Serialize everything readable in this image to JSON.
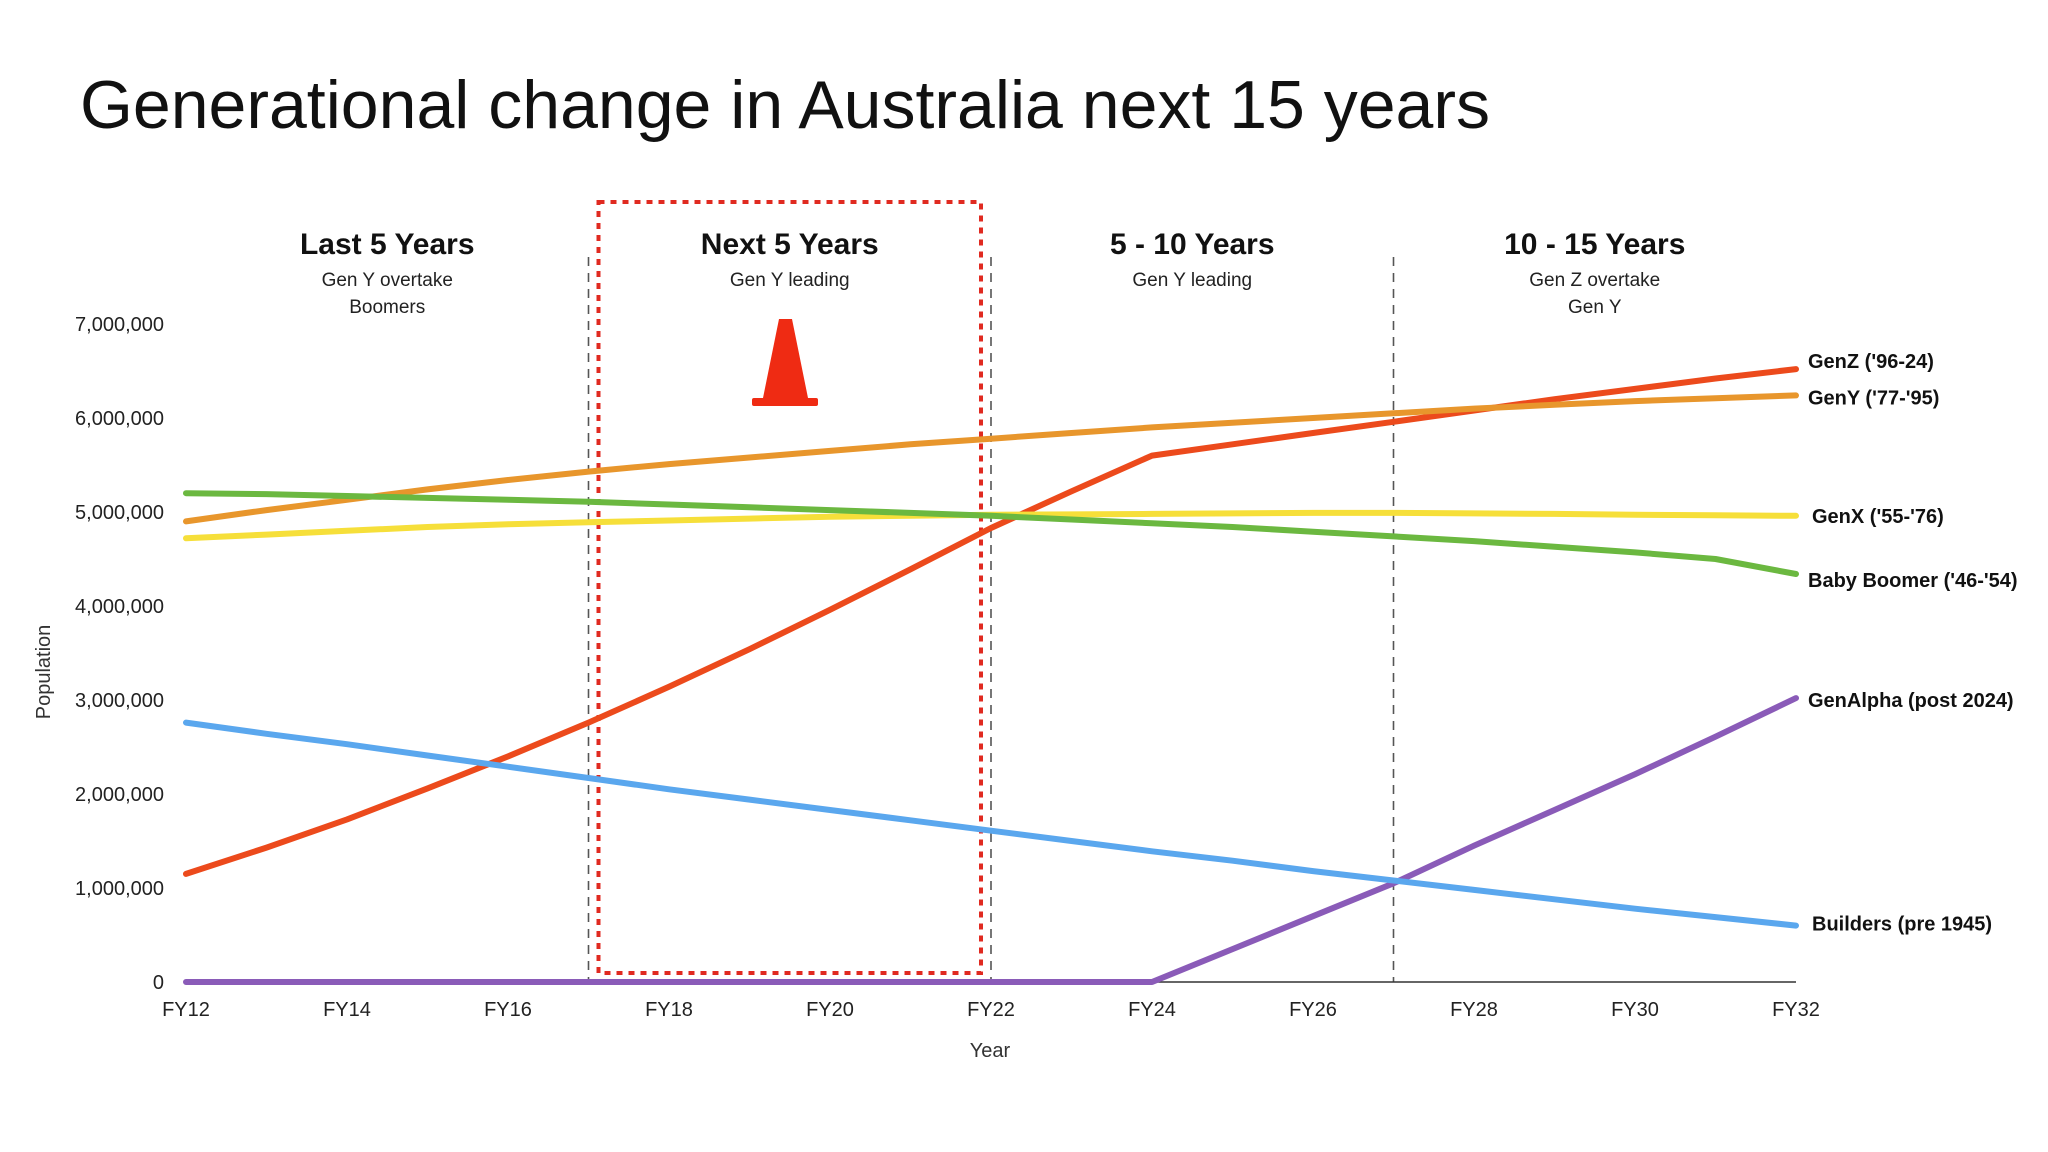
{
  "chart_data": {
    "type": "line",
    "title": "Generational change in Australia next 15 years",
    "xlabel": "Year",
    "ylabel": "Population",
    "ylim": [
      0,
      7000000
    ],
    "yticks": [
      0,
      1000000,
      2000000,
      3000000,
      4000000,
      5000000,
      6000000,
      7000000
    ],
    "ytick_labels": [
      "0",
      "1,000,000",
      "2,000,000",
      "3,000,000",
      "4,000,000",
      "5,000,000",
      "6,000,000",
      "7,000,000"
    ],
    "x": [
      "FY12",
      "FY13",
      "FY14",
      "FY15",
      "FY16",
      "FY17",
      "FY18",
      "FY19",
      "FY20",
      "FY21",
      "FY22",
      "FY23",
      "FY24",
      "FY25",
      "FY26",
      "FY27",
      "FY28",
      "FY29",
      "FY30",
      "FY31",
      "FY32"
    ],
    "xtick_labels": [
      "FY12",
      "FY14",
      "FY16",
      "FY18",
      "FY20",
      "FY22",
      "FY24",
      "FY26",
      "FY28",
      "FY30",
      "FY32"
    ],
    "grid": false,
    "legend": "series labels at right end of lines",
    "series": [
      {
        "name": "GenZ ('96-24)",
        "color": "#ec4a1c",
        "values": [
          1150000,
          1430000,
          1730000,
          2060000,
          2400000,
          2760000,
          3140000,
          3540000,
          3960000,
          4390000,
          4830000,
          5220000,
          5600000,
          5720000,
          5840000,
          5960000,
          6080000,
          6200000,
          6310000,
          6420000,
          6520000
        ]
      },
      {
        "name": "GenY ('77-'95)",
        "color": "#e8962c",
        "values": [
          4900000,
          5020000,
          5130000,
          5240000,
          5340000,
          5430000,
          5510000,
          5580000,
          5650000,
          5720000,
          5780000,
          5840000,
          5900000,
          5950000,
          6000000,
          6050000,
          6100000,
          6140000,
          6180000,
          6210000,
          6240000
        ]
      },
      {
        "name": "GenX ('55-'76)",
        "color": "#f6df3a",
        "values": [
          4720000,
          4760000,
          4800000,
          4840000,
          4870000,
          4890000,
          4910000,
          4930000,
          4950000,
          4960000,
          4970000,
          4975000,
          4980000,
          4985000,
          4990000,
          4990000,
          4985000,
          4980000,
          4970000,
          4965000,
          4960000
        ]
      },
      {
        "name": "Baby Boomer ('46-'54)",
        "color": "#6bb840",
        "values": [
          5200000,
          5190000,
          5170000,
          5150000,
          5130000,
          5110000,
          5080000,
          5050000,
          5020000,
          4990000,
          4960000,
          4920000,
          4880000,
          4840000,
          4790000,
          4740000,
          4690000,
          4630000,
          4570000,
          4500000,
          4340000
        ]
      },
      {
        "name": "GenAlpha (post 2024)",
        "color": "#8a5bb8",
        "values": [
          0,
          0,
          0,
          0,
          0,
          0,
          0,
          0,
          0,
          0,
          0,
          0,
          0,
          350000,
          700000,
          1050000,
          1450000,
          1830000,
          2210000,
          2610000,
          3020000
        ]
      },
      {
        "name": "Builders (pre 1945)",
        "color": "#5aa7ee",
        "values": [
          2760000,
          2640000,
          2530000,
          2410000,
          2290000,
          2170000,
          2050000,
          1940000,
          1830000,
          1720000,
          1610000,
          1500000,
          1390000,
          1290000,
          1180000,
          1080000,
          980000,
          880000,
          780000,
          690000,
          600000
        ]
      }
    ],
    "periods": [
      {
        "label": "Last 5 Years",
        "sub": [
          "Gen Y overtake",
          "Boomers"
        ]
      },
      {
        "label": "Next 5 Years",
        "sub": [
          "Gen Y leading"
        ]
      },
      {
        "label": "5 - 10 Years",
        "sub": [
          "Gen Y leading"
        ]
      },
      {
        "label": "10 - 15 Years",
        "sub": [
          "Gen Z overtake",
          "Gen Y"
        ]
      }
    ],
    "period_dividers_x": [
      "FY17",
      "FY22",
      "FY27"
    ],
    "highlight_box": {
      "from": "FY17",
      "to": "FY22",
      "color": "#e02a20",
      "style": "dotted"
    },
    "annotation_icon": "traffic-cone-icon",
    "annotation_color": "#ef2b13"
  }
}
